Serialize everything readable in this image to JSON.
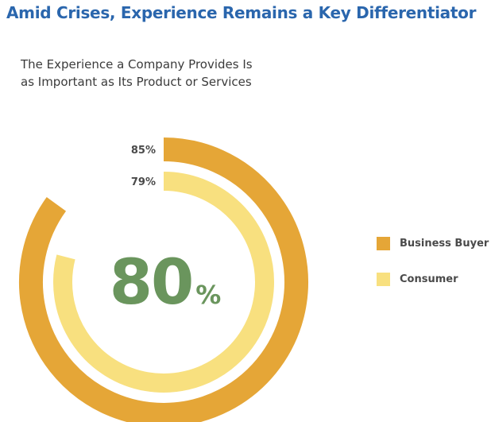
{
  "page": {
    "title": "Amid Crises, Experience Remains a Key Differentiator",
    "subtitle_lines": [
      "The Experience a Company Provides Is",
      "as Important as Its Product or Services"
    ]
  },
  "chart_data": {
    "type": "radial-bar",
    "title": "The Experience a Company Provides Is as Important as Its Product or Services",
    "center_value": "80",
    "center_unit": "%",
    "series": [
      {
        "name": "Business Buyer",
        "value": 85,
        "label": "85%",
        "color": "#e5a637"
      },
      {
        "name": "Consumer",
        "value": 79,
        "label": "79%",
        "color": "#f8e07f"
      }
    ],
    "center_color": "#6a955d",
    "legend_position": "right"
  }
}
